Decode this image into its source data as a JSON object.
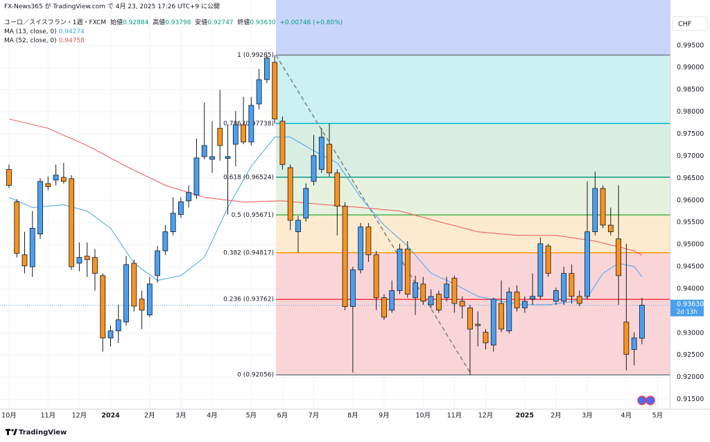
{
  "chart_data": {
    "type": "candlestick",
    "published": "FX-News365 が TradingView.com で 4月 23, 2025 17:26 UTC+9 に公開",
    "symbol": "ユーロ／スイスフラン・1週・FXCM",
    "ohlc_names": [
      "始値",
      "高値",
      "安値",
      "終値"
    ],
    "change": "+0.00746 (+0.80%)",
    "currency": "CHF",
    "countdown": "2d 13h",
    "brand": "TradingView",
    "last_price": {
      "value": 0.9363,
      "label": "0.93630"
    },
    "up_color": "#4aa0ef",
    "down_color": "#f7931e",
    "open": [
      0.967,
      0.9597,
      0.9477,
      0.945,
      0.9524,
      0.9638,
      0.9646,
      0.9652,
      0.9649,
      0.9458,
      0.9474,
      0.9471,
      0.943,
      0.9289,
      0.9305,
      0.9325,
      0.9458,
      0.9377,
      0.9341,
      0.943,
      0.9486,
      0.9529,
      0.9568,
      0.9599,
      0.9612,
      0.9699,
      0.9693,
      0.9763,
      0.9695,
      0.9727,
      0.9771,
      0.9732,
      0.9818,
      0.9873,
      0.9912,
      0.9779,
      0.9674,
      0.9529,
      0.956,
      0.9643,
      0.967,
      0.9727,
      0.9662,
      0.9587,
      0.936,
      0.9443,
      0.954,
      0.9477,
      0.938,
      0.9352,
      0.9396,
      0.949,
      0.938,
      0.9411,
      0.9364,
      0.9388,
      0.938,
      0.9424,
      0.9372,
      0.9357,
      0.932,
      0.9302,
      0.9273,
      0.9367,
      0.9305,
      0.9393,
      0.9357,
      0.9377,
      0.9383,
      0.9497,
      0.9372,
      0.9372,
      0.9435,
      0.9383,
      0.9383,
      0.9529,
      0.9627,
      0.9544,
      0.9513,
      0.9325,
      0.9263,
      0.92884
    ],
    "high": [
      0.9681,
      0.9603,
      0.9529,
      0.9576,
      0.965,
      0.9654,
      0.9681,
      0.9685,
      0.9657,
      0.9505,
      0.9505,
      0.949,
      0.9435,
      0.9317,
      0.9364,
      0.9474,
      0.9466,
      0.9396,
      0.9427,
      0.9497,
      0.9544,
      0.9607,
      0.9607,
      0.9634,
      0.974,
      0.9821,
      0.9779,
      0.985,
      0.9771,
      0.9802,
      0.9834,
      0.9834,
      0.9897,
      0.99285,
      0.9928,
      0.979,
      0.9681,
      0.9565,
      0.9638,
      0.9748,
      0.9763,
      0.9774,
      0.967,
      0.9596,
      0.945,
      0.9549,
      0.9549,
      0.9486,
      0.9388,
      0.9419,
      0.9502,
      0.9508,
      0.943,
      0.9427,
      0.9399,
      0.9396,
      0.9427,
      0.943,
      0.9383,
      0.9364,
      0.9349,
      0.9309,
      0.938,
      0.9419,
      0.9403,
      0.9408,
      0.9383,
      0.9435,
      0.9516,
      0.9502,
      0.9403,
      0.945,
      0.9455,
      0.9396,
      0.9643,
      0.9665,
      0.9634,
      0.9584,
      0.9634,
      0.9502,
      0.9302,
      0.93798
    ],
    "low": [
      0.9628,
      0.9471,
      0.9435,
      0.9427,
      0.9513,
      0.9623,
      0.9634,
      0.9638,
      0.9443,
      0.944,
      0.9427,
      0.9396,
      0.9258,
      0.927,
      0.9278,
      0.9317,
      0.9349,
      0.9309,
      0.9336,
      0.9414,
      0.9477,
      0.9521,
      0.956,
      0.9584,
      0.9603,
      0.9693,
      0.9662,
      0.969,
      0.9568,
      0.9677,
      0.9727,
      0.9724,
      0.9806,
      0.9865,
      0.9774,
      0.967,
      0.9533,
      0.9482,
      0.9552,
      0.9634,
      0.9662,
      0.9654,
      0.9521,
      0.9352,
      0.9211,
      0.9435,
      0.9461,
      0.9352,
      0.933,
      0.9346,
      0.9388,
      0.938,
      0.9341,
      0.9364,
      0.9356,
      0.9346,
      0.9371,
      0.9346,
      0.9333,
      0.92056,
      0.927,
      0.9263,
      0.9258,
      0.9302,
      0.9299,
      0.9349,
      0.9346,
      0.9364,
      0.9377,
      0.9427,
      0.9364,
      0.9364,
      0.9367,
      0.9361,
      0.9377,
      0.9521,
      0.9537,
      0.9521,
      0.9364,
      0.9216,
      0.9227,
      0.92747
    ],
    "close": [
      0.9634,
      0.948,
      0.9452,
      0.9537,
      0.9643,
      0.9631,
      0.9657,
      0.9643,
      0.945,
      0.9471,
      0.9466,
      0.9435,
      0.9289,
      0.9305,
      0.933,
      0.9455,
      0.9361,
      0.9352,
      0.9411,
      0.9486,
      0.9529,
      0.9571,
      0.9597,
      0.9618,
      0.9696,
      0.9724,
      0.9699,
      0.9724,
      0.9699,
      0.9771,
      0.9732,
      0.9815,
      0.9873,
      0.9922,
      0.9784,
      0.9681,
      0.9555,
      0.9555,
      0.9627,
      0.9701,
      0.9743,
      0.9662,
      0.9587,
      0.936,
      0.9443,
      0.954,
      0.9477,
      0.938,
      0.9336,
      0.9396,
      0.949,
      0.9388,
      0.9414,
      0.9372,
      0.9383,
      0.9352,
      0.9411,
      0.9367,
      0.9361,
      0.9309,
      0.9317,
      0.9278,
      0.9377,
      0.9309,
      0.9393,
      0.9357,
      0.9372,
      0.9383,
      0.9502,
      0.9435,
      0.9396,
      0.9435,
      0.9383,
      0.9367,
      0.9529,
      0.9627,
      0.9544,
      0.9529,
      0.943,
      0.9252,
      0.9289,
      0.9363
    ],
    "ma": [
      {
        "name": "MA (13, close, 0)",
        "color": "#42a5f5",
        "x": [
          0,
          3,
          7,
          10,
          13,
          16,
          19,
          22,
          25,
          28,
          31,
          34,
          36,
          39,
          42,
          45,
          48,
          51,
          54,
          57,
          60,
          63,
          66,
          69,
          72,
          74,
          76,
          78,
          80,
          81
        ],
        "values": [
          0.9607,
          0.9584,
          0.959,
          0.9576,
          0.9537,
          0.9458,
          0.9419,
          0.943,
          0.9471,
          0.9584,
          0.9677,
          0.9743,
          0.9743,
          0.9712,
          0.9685,
          0.9607,
          0.9544,
          0.9497,
          0.9435,
          0.9411,
          0.9383,
          0.9372,
          0.9364,
          0.9364,
          0.9371,
          0.938,
          0.9435,
          0.9458,
          0.945,
          0.94274
        ]
      },
      {
        "name": "MA (52, close, 0)",
        "color": "#ef5350",
        "x": [
          0,
          5,
          10,
          15,
          20,
          25,
          30,
          35,
          40,
          45,
          50,
          55,
          60,
          65,
          70,
          75,
          80,
          81
        ],
        "values": [
          0.9784,
          0.9763,
          0.9724,
          0.9677,
          0.9634,
          0.9607,
          0.9596,
          0.9599,
          0.9591,
          0.9584,
          0.9576,
          0.9552,
          0.9529,
          0.9521,
          0.9521,
          0.9508,
          0.9486,
          0.94758
        ]
      }
    ],
    "fib_levels": [
      {
        "value": 0.99285,
        "label": "1 (0.99285)",
        "color": "#787b86",
        "fill": "#e3e3e3"
      },
      {
        "value": 0.97738,
        "label": "0.786 (0.97738)",
        "color": "#00bcd4",
        "fill": "#cdf0f3"
      },
      {
        "value": 0.96524,
        "label": "0.618 (0.96524)",
        "color": "#089981",
        "fill": "#d9eee3"
      },
      {
        "value": 0.95671,
        "label": "0.5 (0.95671)",
        "color": "#4caf50",
        "fill": "#e7f2de"
      },
      {
        "value": 0.94817,
        "label": "0.382 (0.94817)",
        "color": "#ff9800",
        "fill": "#fdebd0"
      },
      {
        "value": 0.93762,
        "label": "0.236 (0.93762)",
        "color": "#f23645",
        "fill": "#fad5d8"
      },
      {
        "value": 0.92056,
        "label": "0 (0.92056)",
        "color": "#787b86",
        "fill": "#fad5d8"
      }
    ],
    "xlim": [
      -1.15,
      84.56
    ],
    "ylim": [
      0.9129,
      1.0053
    ],
    "xticks": [
      {
        "value": 0,
        "label": "10月"
      },
      {
        "value": 5,
        "label": "11月"
      },
      {
        "value": 9,
        "label": "12月"
      },
      {
        "value": 13,
        "label": "2024"
      },
      {
        "value": 18,
        "label": "2月"
      },
      {
        "value": 22,
        "label": "3月"
      },
      {
        "value": 26,
        "label": "4月"
      },
      {
        "value": 31,
        "label": "5月"
      },
      {
        "value": 35,
        "label": "6月"
      },
      {
        "value": 39,
        "label": "7月"
      },
      {
        "value": 44,
        "label": "8月"
      },
      {
        "value": 48,
        "label": "9月"
      },
      {
        "value": 53,
        "label": "10月"
      },
      {
        "value": 57,
        "label": "11月"
      },
      {
        "value": 61,
        "label": "12月"
      },
      {
        "value": 66,
        "label": "2025"
      },
      {
        "value": 70,
        "label": "2月"
      },
      {
        "value": 74,
        "label": "3月"
      },
      {
        "value": 79,
        "label": "4月"
      },
      {
        "value": 83,
        "label": "5月"
      }
    ],
    "yticks": [
      {
        "value": 0.915,
        "label": "0.91500"
      },
      {
        "value": 0.92,
        "label": "0.92000"
      },
      {
        "value": 0.925,
        "label": "0.92500"
      },
      {
        "value": 0.93,
        "label": "0.93000"
      },
      {
        "value": 0.935,
        "label": "0.93500"
      },
      {
        "value": 0.94,
        "label": "0.94000"
      },
      {
        "value": 0.945,
        "label": "0.94500"
      },
      {
        "value": 0.95,
        "label": "0.95000"
      },
      {
        "value": 0.955,
        "label": "0.95500"
      },
      {
        "value": 0.96,
        "label": "0.96000"
      },
      {
        "value": 0.965,
        "label": "0.96500"
      },
      {
        "value": 0.97,
        "label": "0.97000"
      },
      {
        "value": 0.975,
        "label": "0.97500"
      },
      {
        "value": 0.98,
        "label": "0.98000"
      },
      {
        "value": 0.985,
        "label": "0.98500"
      },
      {
        "value": 0.99,
        "label": "0.99000"
      },
      {
        "value": 0.995,
        "label": "0.99500"
      }
    ],
    "grid": true
  }
}
